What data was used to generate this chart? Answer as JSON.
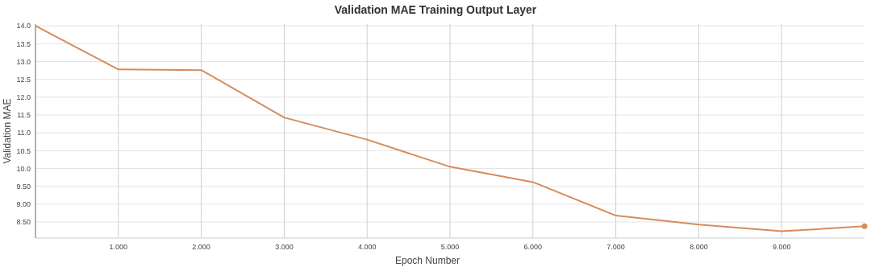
{
  "chart_data": {
    "type": "line",
    "title": "Validation MAE Training Output Layer",
    "xlabel": "Epoch Number",
    "ylabel": "Validation MAE",
    "x": [
      0,
      1,
      2,
      3,
      4,
      5,
      6,
      7,
      8,
      9,
      10
    ],
    "series": [
      {
        "color": "#d68c5c",
        "values": [
          14.0,
          12.78,
          12.76,
          11.43,
          10.81,
          10.05,
          9.62,
          8.68,
          8.43,
          8.24,
          8.38
        ]
      },
      {
        "type": "scatter",
        "color": "#d68c5c",
        "x": [
          10
        ],
        "values": [
          8.38
        ],
        "marker": "circle"
      }
    ],
    "xlim": [
      0,
      10
    ],
    "ylim": [
      8.05,
      14.05
    ],
    "xticks": [
      {
        "value": 1,
        "label": "1.000"
      },
      {
        "value": 2,
        "label": "2.000"
      },
      {
        "value": 3,
        "label": "3.000"
      },
      {
        "value": 4,
        "label": "4.000"
      },
      {
        "value": 5,
        "label": "5.000"
      },
      {
        "value": 6,
        "label": "6.000"
      },
      {
        "value": 7,
        "label": "7.000"
      },
      {
        "value": 8,
        "label": "8.000"
      },
      {
        "value": 9,
        "label": "9.000"
      }
    ],
    "yticks": [
      {
        "value": 8.5,
        "label": "8.50"
      },
      {
        "value": 9,
        "label": "9.00"
      },
      {
        "value": 9.5,
        "label": "9.50"
      },
      {
        "value": 10,
        "label": "10.0"
      },
      {
        "value": 10.5,
        "label": "10.5"
      },
      {
        "value": 11,
        "label": "11.0"
      },
      {
        "value": 11.5,
        "label": "11.5"
      },
      {
        "value": 12,
        "label": "12.0"
      },
      {
        "value": 12.5,
        "label": "12.5"
      },
      {
        "value": 13,
        "label": "13.0"
      },
      {
        "value": 13.5,
        "label": "13.5"
      },
      {
        "value": 14,
        "label": "14.0"
      }
    ],
    "grid": true,
    "marker": "none"
  }
}
